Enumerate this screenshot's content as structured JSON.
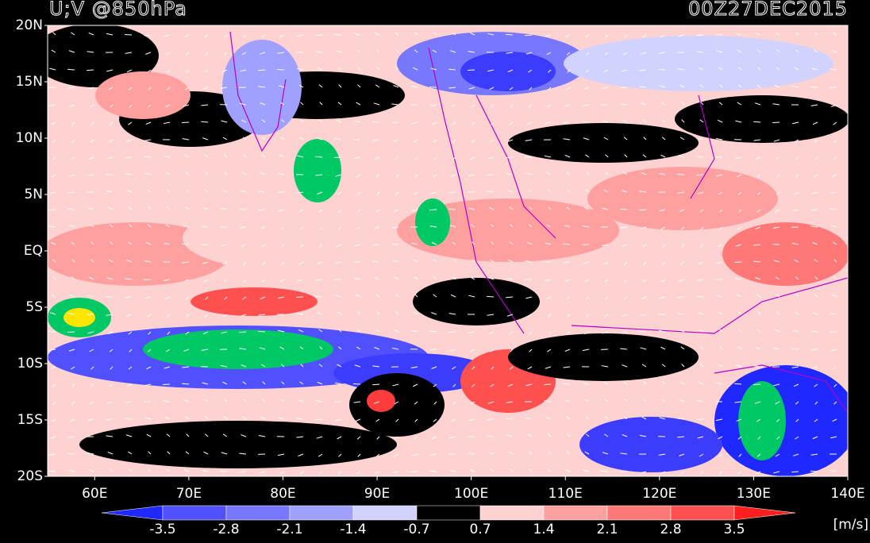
{
  "chart_data": {
    "type": "map",
    "title": "U;V @850hPa",
    "date": "00Z27DEC2015",
    "xlim": [
      55,
      140
    ],
    "xticks": [
      {
        "value": 60,
        "label": "60E"
      },
      {
        "value": 70,
        "label": "70E"
      },
      {
        "value": 80,
        "label": "80E"
      },
      {
        "value": 90,
        "label": "90E"
      },
      {
        "value": 100,
        "label": "100E"
      },
      {
        "value": 110,
        "label": "110E"
      },
      {
        "value": 120,
        "label": "120E"
      },
      {
        "value": 130,
        "label": "130E"
      },
      {
        "value": 140,
        "label": "140E"
      }
    ],
    "ylim": [
      -20,
      20
    ],
    "yticks": [
      {
        "value": 20,
        "label": "20N"
      },
      {
        "value": 15,
        "label": "15N"
      },
      {
        "value": 10,
        "label": "10N"
      },
      {
        "value": 5,
        "label": "5N"
      },
      {
        "value": 0,
        "label": "EQ"
      },
      {
        "value": -5,
        "label": "5S"
      },
      {
        "value": -10,
        "label": "10S"
      },
      {
        "value": -15,
        "label": "15S"
      },
      {
        "value": -20,
        "label": "20S"
      }
    ],
    "colorbar": {
      "levels": [
        -3.5,
        -2.8,
        -2.1,
        -1.4,
        -0.7,
        0.7,
        1.4,
        2.1,
        2.8,
        3.5
      ],
      "colors": [
        "#1e28ff",
        "#5050ff",
        "#7878ff",
        "#a0a0ff",
        "#d2d2ff",
        "#000000",
        "#ffd2d2",
        "#ffa0a0",
        "#ff7878",
        "#ff5050",
        "#ff1e1e"
      ],
      "unit": "[m/s]"
    }
  }
}
